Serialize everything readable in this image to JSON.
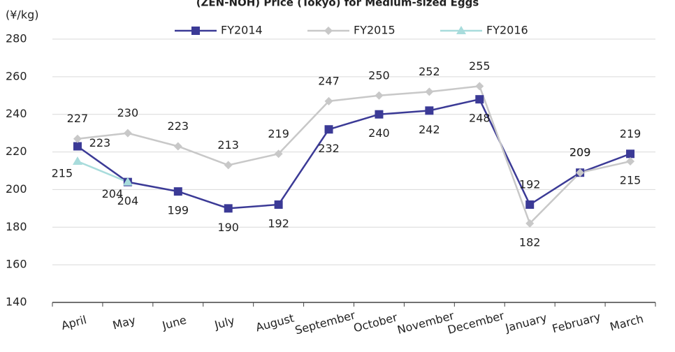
{
  "chart_data": {
    "type": "line",
    "title": "(ZEN-NOH) Price (Tokyo) for Medium-sized Eggs",
    "y_label": "(¥/kg)",
    "categories": [
      "April",
      "May",
      "June",
      "July",
      "August",
      "September",
      "October",
      "November",
      "December",
      "January",
      "February",
      "March"
    ],
    "series": [
      {
        "name": "FY2014",
        "color": "#3b3a96",
        "marker": "square",
        "values": [
          223,
          204,
          199,
          190,
          192,
          232,
          240,
          242,
          248,
          192,
          209,
          219
        ]
      },
      {
        "name": "FY2015",
        "color": "#c8c8c8",
        "marker": "diamond",
        "values": [
          227,
          230,
          223,
          213,
          219,
          247,
          250,
          252,
          255,
          182,
          209,
          215
        ]
      },
      {
        "name": "FY2016",
        "color": "#a8dcdc",
        "marker": "triangle",
        "values": [
          215,
          204,
          null,
          null,
          null,
          null,
          null,
          null,
          null,
          null,
          null,
          null
        ]
      }
    ],
    "ylim": [
      140,
      280
    ],
    "yticks": [
      140,
      160,
      180,
      200,
      220,
      240,
      260,
      280
    ],
    "grid": true,
    "legend": "top"
  }
}
